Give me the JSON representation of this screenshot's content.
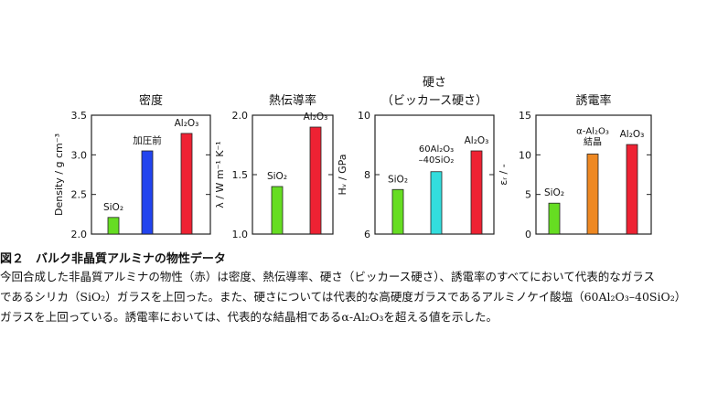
{
  "chart_data": [
    {
      "type": "bar",
      "title": "密度",
      "ylabel": "Density / g cm⁻³",
      "ylim": [
        2.0,
        3.5
      ],
      "yticks": [
        2.0,
        2.5,
        3.0,
        3.5
      ],
      "ytick_labels": [
        "2.0",
        "2.5",
        "3.0",
        "3.5"
      ],
      "categories": [
        "SiO₂",
        "加圧前",
        "Al₂O₃"
      ],
      "values": [
        2.21,
        3.05,
        3.27
      ],
      "colors": [
        "#66dd22",
        "#2244ee",
        "#ee2233"
      ]
    },
    {
      "type": "bar",
      "title": "熱伝導率",
      "ylabel": "λ / W m⁻¹ K⁻¹",
      "ylim": [
        1.0,
        2.0
      ],
      "yticks": [
        1.0,
        1.5,
        2.0
      ],
      "ytick_labels": [
        "1.0",
        "1.5",
        "2.0"
      ],
      "categories": [
        "SiO₂",
        "Al₂O₃"
      ],
      "values": [
        1.4,
        1.9
      ],
      "colors": [
        "#66dd22",
        "#ee2233"
      ]
    },
    {
      "type": "bar",
      "title": "硬さ",
      "subtitle": "（ビッカース硬さ）",
      "ylabel": "Hᵥ / GPa",
      "ylim": [
        6,
        10
      ],
      "yticks": [
        6,
        8,
        10
      ],
      "ytick_labels": [
        "6",
        "8",
        "10"
      ],
      "categories": [
        "SiO₂",
        "60Al₂O₃–40SiO₂",
        "Al₂O₃"
      ],
      "values": [
        7.5,
        8.1,
        8.8
      ],
      "colors": [
        "#66dd22",
        "#33dddd",
        "#ee2233"
      ]
    },
    {
      "type": "bar",
      "title": "誘電率",
      "ylabel": "εᵣ / -",
      "ylim": [
        0,
        15
      ],
      "yticks": [
        0,
        5,
        10,
        15
      ],
      "ytick_labels": [
        "0",
        "5",
        "10",
        "15"
      ],
      "categories": [
        "SiO₂",
        "α-Al₂O₃ 結晶",
        "Al₂O₃"
      ],
      "values": [
        3.9,
        10.1,
        11.3
      ],
      "colors": [
        "#66dd22",
        "#ee8822",
        "#ee2233"
      ]
    }
  ],
  "caption": {
    "heading": "図２　バルク非晶質アルミナの物性データ",
    "line1": "今回合成した非晶質アルミナの物性（赤）は密度、熱伝導率、硬さ（ビッカース硬さ）、誘電率のすべてにおいて代表的なガラス",
    "line2": "であるシリカ（SiO₂）ガラスを上回った。また、硬さについては代表的な高硬度ガラスであるアルミノケイ酸塩（60Al₂O₃–40SiO₂）",
    "line3": "ガラスを上回っている。誘電率においては、代表的な結晶相であるα-Al₂O₃を超える値を示した。"
  }
}
